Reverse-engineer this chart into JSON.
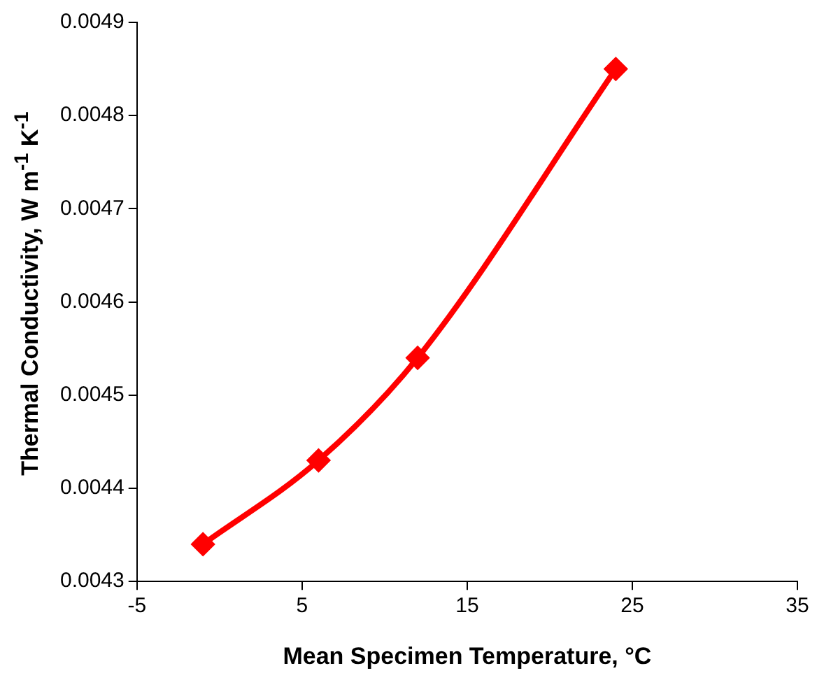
{
  "chart_data": {
    "type": "line",
    "xlabel": "Mean Specimen Temperature, °C",
    "ylabel": "Thermal Conductivity, W m$^{-1}$ K$^{-1}$",
    "x": [
      -1,
      6,
      12,
      24
    ],
    "series": [
      {
        "color": "#ff0000",
        "values": [
          0.00434,
          0.00443,
          0.00454,
          0.00485
        ]
      }
    ],
    "xlim": [
      -5,
      35
    ],
    "xticks": [
      -5,
      5,
      15,
      25,
      35
    ],
    "ylim": [
      0.0043,
      0.0049
    ],
    "yticks": [
      0.0043,
      0.0044,
      0.0045,
      0.0046,
      0.0047,
      0.0048,
      0.0049
    ],
    "grid": false,
    "legend": false,
    "marker": "diamond",
    "line_style": "solid"
  }
}
